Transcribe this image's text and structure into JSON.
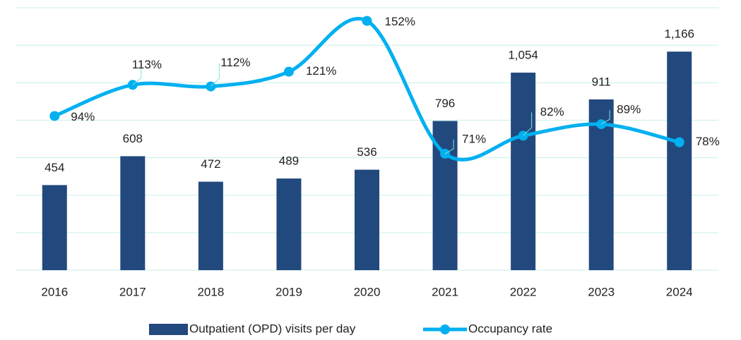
{
  "chart_data": {
    "type": "bar-line",
    "categories": [
      "2016",
      "2017",
      "2018",
      "2019",
      "2020",
      "2021",
      "2022",
      "2023",
      "2024"
    ],
    "series": [
      {
        "name": "Outpatient (OPD) visits per day",
        "type": "bar",
        "color": "#22497d",
        "values": [
          454,
          608,
          472,
          489,
          536,
          796,
          1054,
          911,
          1166
        ],
        "value_labels": [
          "454",
          "608",
          "472",
          "489",
          "536",
          "796",
          "1,054",
          "911",
          "1,166"
        ]
      },
      {
        "name": "Occupancy rate",
        "type": "line",
        "axis": "y2",
        "color": "#00b0f0",
        "values": [
          94,
          113,
          112,
          121,
          152,
          71,
          82,
          89,
          78
        ],
        "value_labels": [
          "94%",
          "113%",
          "112%",
          "121%",
          "152%",
          "71%",
          "82%",
          "89%",
          "78%"
        ]
      }
    ],
    "ylim": [
      0,
      1400
    ],
    "yticks": [
      0,
      200,
      400,
      600,
      800,
      1000,
      1200,
      1400
    ],
    "y2lim": [
      0,
      160
    ],
    "grid": true,
    "legend": "bottom"
  }
}
